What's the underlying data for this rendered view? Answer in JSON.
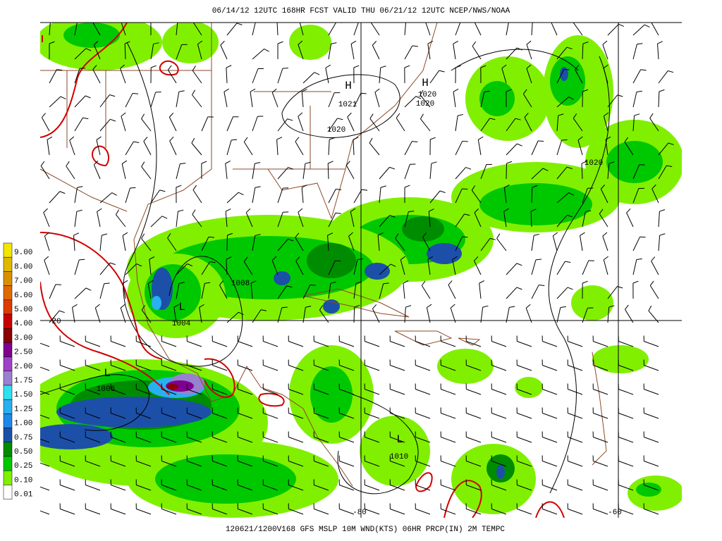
{
  "header": {
    "title": "06/14/12 12UTC  168HR  FCST VALID THU 06/21/12 12UTC  NCEP/NWS/NOAA"
  },
  "footer": {
    "caption": "120621/1200V168 GFS MSLP 10M WND(KTS) 06HR PRCP(IN) 2M TEMPC"
  },
  "legend": {
    "items": [
      {
        "label": "9.00",
        "color": "#f2e600"
      },
      {
        "label": "8.00",
        "color": "#e0b800"
      },
      {
        "label": "7.00",
        "color": "#d99000"
      },
      {
        "label": "6.00",
        "color": "#e06a00"
      },
      {
        "label": "5.00",
        "color": "#dd3c00"
      },
      {
        "label": "4.00",
        "color": "#c80000"
      },
      {
        "label": "3.00",
        "color": "#8b0000"
      },
      {
        "label": "2.50",
        "color": "#800090"
      },
      {
        "label": "2.00",
        "color": "#a040c8"
      },
      {
        "label": "1.75",
        "color": "#9a80d0"
      },
      {
        "label": "1.50",
        "color": "#30e0f0"
      },
      {
        "label": "1.25",
        "color": "#28b0f0"
      },
      {
        "label": "1.00",
        "color": "#1e88e8"
      },
      {
        "label": "0.75",
        "color": "#1c50a8"
      },
      {
        "label": "0.50",
        "color": "#008c00"
      },
      {
        "label": "0.25",
        "color": "#00c800"
      },
      {
        "label": "0.10",
        "color": "#80f000"
      },
      {
        "label": "0.01",
        "color": "#ffffff"
      }
    ]
  },
  "map": {
    "high_markers": [
      "H",
      "H"
    ],
    "low_markers": [
      "L",
      "L",
      "L"
    ],
    "isobar_labels": [
      "1021",
      "1020",
      "1020",
      "1020",
      "1020",
      "1008",
      "1004",
      "20",
      "1006",
      "1010"
    ],
    "longitude_labels": [
      "-80",
      "-60"
    ]
  }
}
